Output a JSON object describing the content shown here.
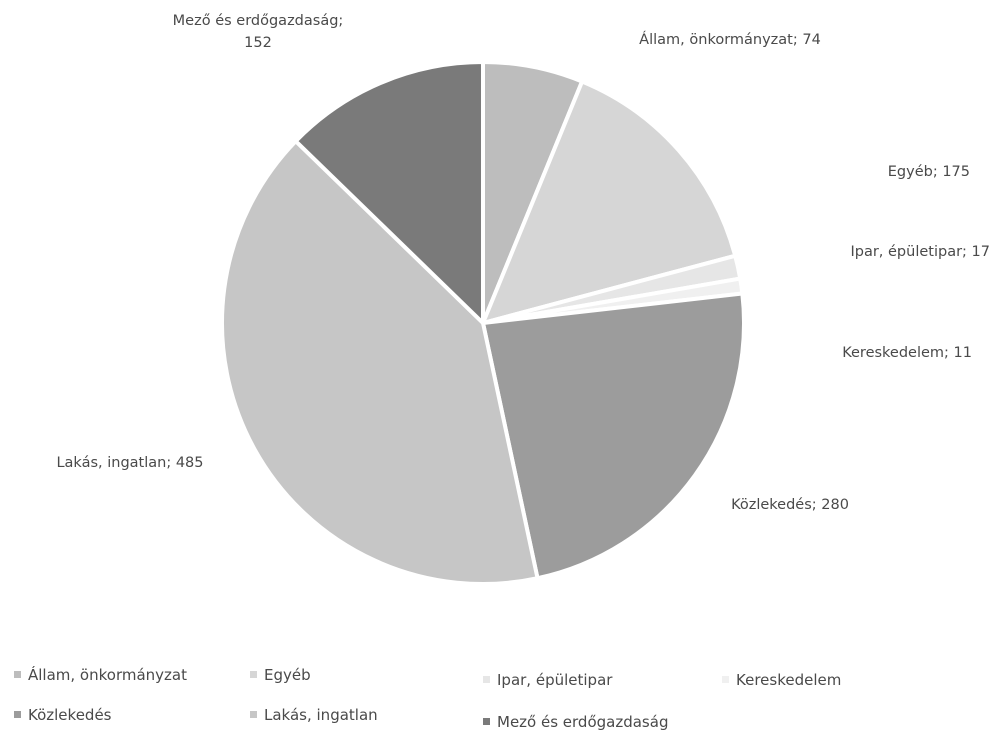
{
  "chart_data": {
    "type": "pie",
    "title": "",
    "slices": [
      {
        "name": "Állam, önkormányzat",
        "value": 74,
        "color": "#bdbdbd",
        "label_lines": [
          "Állam, önkormányzat; 74"
        ]
      },
      {
        "name": "Egyéb",
        "value": 175,
        "color": "#d6d6d6",
        "label_lines": [
          "Egyéb; 175"
        ]
      },
      {
        "name": "Ipar, épületipar",
        "value": 17,
        "color": "#e6e6e6",
        "label_lines": [
          "Ipar, épületipar; 17"
        ]
      },
      {
        "name": "Kereskedelem",
        "value": 11,
        "color": "#f0f0f0",
        "label_lines": [
          "Kereskedelem; 11"
        ]
      },
      {
        "name": "Közlekedés",
        "value": 280,
        "color": "#9c9c9c",
        "label_lines": [
          "Közlekedés; 280"
        ]
      },
      {
        "name": "Lakás, ingatlan",
        "value": 485,
        "color": "#c6c6c6",
        "label_lines": [
          "Lakás, ingatlan; 485"
        ]
      },
      {
        "name": "Mező és erdőgazdaság",
        "value": 152,
        "color": "#7a7a7a",
        "label_lines": [
          "Mező és erdőgazdaság;",
          "152"
        ]
      }
    ],
    "legend_placement": "bottom"
  }
}
